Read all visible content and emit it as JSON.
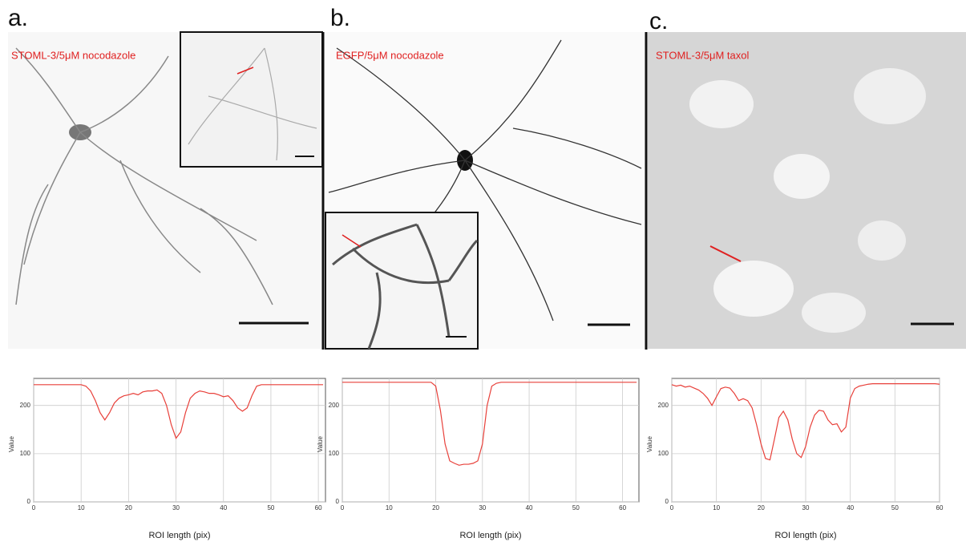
{
  "panels": [
    {
      "label": "a.",
      "caption": "STOML-3/5μM nocodazole"
    },
    {
      "label": "b.",
      "caption": "EGFP/5μM nocodazole"
    },
    {
      "label": "c.",
      "caption": "STOML-3/5μM taxol"
    }
  ],
  "chart_data": [
    {
      "type": "line",
      "x_label": "ROI length (pix)",
      "y_label": "Value",
      "xlim": [
        0,
        61.5
      ],
      "ylim": [
        0,
        256
      ],
      "xticks": [
        0,
        10,
        20,
        30,
        40,
        50,
        60
      ],
      "yticks": [
        0,
        100,
        200
      ],
      "grid": true,
      "series": [
        {
          "color": "#e8403a",
          "x": [
            0,
            1,
            2,
            3,
            4,
            5,
            6,
            7,
            8,
            9,
            10,
            11,
            12,
            13,
            14,
            15,
            16,
            17,
            18,
            19,
            20,
            21,
            22,
            23,
            24,
            25,
            26,
            27,
            28,
            29,
            30,
            31,
            32,
            33,
            34,
            35,
            36,
            37,
            38,
            39,
            40,
            41,
            42,
            43,
            44,
            45,
            46,
            47,
            48,
            49,
            50,
            51,
            52,
            53,
            54,
            55,
            56,
            57,
            58,
            59,
            60,
            61
          ],
          "values": [
            243,
            243,
            243,
            243,
            243,
            243,
            243,
            243,
            243,
            243,
            243,
            240,
            230,
            210,
            185,
            170,
            185,
            205,
            215,
            220,
            222,
            225,
            222,
            228,
            230,
            230,
            232,
            225,
            200,
            160,
            132,
            145,
            185,
            215,
            225,
            230,
            228,
            225,
            225,
            222,
            218,
            220,
            210,
            195,
            188,
            195,
            220,
            240,
            243,
            243,
            243,
            243,
            243,
            243,
            243,
            243,
            243,
            243,
            243,
            243,
            243,
            243
          ]
        }
      ]
    },
    {
      "type": "line",
      "x_label": "ROI length (pix)",
      "y_label": "Value",
      "xlim": [
        0,
        63.5
      ],
      "ylim": [
        0,
        256
      ],
      "xticks": [
        0,
        10,
        20,
        30,
        40,
        50,
        60
      ],
      "yticks": [
        0,
        100,
        200
      ],
      "grid": true,
      "series": [
        {
          "color": "#e8403a",
          "x": [
            0,
            1,
            2,
            3,
            4,
            5,
            6,
            7,
            8,
            9,
            10,
            11,
            12,
            13,
            14,
            15,
            16,
            17,
            18,
            19,
            20,
            21,
            22,
            23,
            24,
            25,
            26,
            27,
            28,
            29,
            30,
            31,
            32,
            33,
            34,
            35,
            36,
            37,
            38,
            39,
            40,
            41,
            42,
            43,
            44,
            45,
            46,
            47,
            48,
            49,
            50,
            51,
            52,
            53,
            54,
            55,
            56,
            57,
            58,
            59,
            60,
            61,
            62,
            63
          ],
          "values": [
            248,
            248,
            248,
            248,
            248,
            248,
            248,
            248,
            248,
            248,
            248,
            248,
            248,
            248,
            248,
            248,
            248,
            248,
            248,
            248,
            240,
            190,
            120,
            85,
            80,
            76,
            78,
            78,
            80,
            85,
            120,
            200,
            240,
            246,
            248,
            248,
            248,
            248,
            248,
            248,
            248,
            248,
            248,
            248,
            248,
            248,
            248,
            248,
            248,
            248,
            248,
            248,
            248,
            248,
            248,
            248,
            248,
            248,
            248,
            248,
            248,
            248,
            248,
            248
          ]
        }
      ]
    },
    {
      "type": "line",
      "x_label": "ROI length (pix)",
      "y_label": "Value",
      "xlim": [
        0,
        60
      ],
      "ylim": [
        0,
        256
      ],
      "xticks": [
        0,
        10,
        20,
        30,
        40,
        50,
        60
      ],
      "yticks": [
        0,
        100,
        200
      ],
      "grid": true,
      "series": [
        {
          "color": "#e8403a",
          "x": [
            0,
            1,
            2,
            3,
            4,
            5,
            6,
            7,
            8,
            9,
            10,
            11,
            12,
            13,
            14,
            15,
            16,
            17,
            18,
            19,
            20,
            21,
            22,
            23,
            24,
            25,
            26,
            27,
            28,
            29,
            30,
            31,
            32,
            33,
            34,
            35,
            36,
            37,
            38,
            39,
            40,
            41,
            42,
            43,
            44,
            45,
            46,
            47,
            48,
            49,
            50,
            51,
            52,
            53,
            54,
            55,
            56,
            57,
            58,
            59,
            60
          ],
          "values": [
            243,
            240,
            242,
            238,
            240,
            236,
            232,
            225,
            215,
            200,
            218,
            235,
            238,
            236,
            225,
            210,
            214,
            210,
            195,
            160,
            120,
            90,
            87,
            130,
            175,
            188,
            170,
            130,
            100,
            92,
            115,
            155,
            180,
            190,
            188,
            170,
            160,
            162,
            145,
            155,
            215,
            235,
            240,
            242,
            244,
            245,
            245,
            245,
            245,
            245,
            245,
            245,
            245,
            245,
            245,
            245,
            245,
            245,
            245,
            245,
            244
          ]
        }
      ]
    }
  ]
}
